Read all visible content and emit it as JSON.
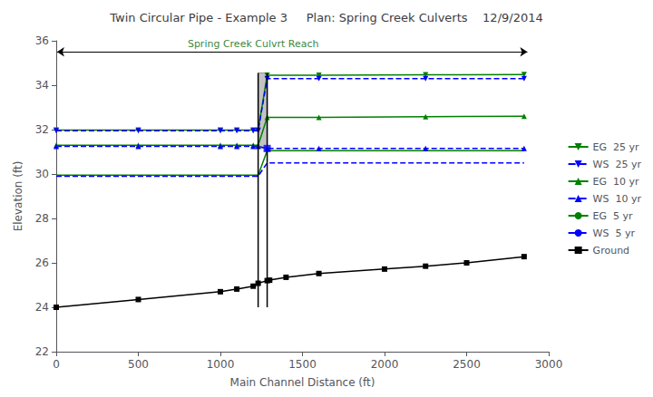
{
  "chart_data": {
    "type": "line",
    "title": "Twin Circular Pipe - Example 3     Plan: Spring Creek Culverts    12/9/2014",
    "x_label": "Main Channel Distance (ft)",
    "y_label": "Elevation (ft)",
    "xlim": [
      0,
      3000
    ],
    "xticks": [
      0,
      500,
      1000,
      1500,
      2000,
      2500,
      3000
    ],
    "ylim": [
      22,
      36
    ],
    "yticks": [
      22,
      24,
      26,
      28,
      30,
      32,
      34,
      36
    ],
    "grid": false,
    "legend": "right",
    "series": [
      {
        "name": "EG  25 yr",
        "color": "#008000",
        "line_style": "solid",
        "marker": "triangle_down",
        "x": [
          0,
          500,
          1000,
          1100,
          1200,
          1230,
          1285,
          1600,
          2250,
          2850
        ],
        "values": [
          31.98,
          31.98,
          31.98,
          31.98,
          31.98,
          31.98,
          34.45,
          34.45,
          34.47,
          34.48
        ]
      },
      {
        "name": "WS  25 yr",
        "color": "#0000ff",
        "line_style": "dashed",
        "marker": "triangle_down",
        "x": [
          0,
          500,
          1000,
          1100,
          1200,
          1230,
          1285,
          1600,
          2250,
          2850
        ],
        "values": [
          31.95,
          31.95,
          31.95,
          31.95,
          31.95,
          31.95,
          34.3,
          34.3,
          34.3,
          34.3
        ]
      },
      {
        "name": "EG  10 yr",
        "color": "#008000",
        "line_style": "solid",
        "marker": "triangle_up",
        "x": [
          0,
          500,
          1000,
          1100,
          1200,
          1230,
          1285,
          1600,
          2250,
          2850
        ],
        "values": [
          31.3,
          31.3,
          31.3,
          31.3,
          31.3,
          31.3,
          32.55,
          32.55,
          32.58,
          32.6
        ]
      },
      {
        "name": "WS  10 yr",
        "color": "#0000ff",
        "line_style": "dashed",
        "marker": "triangle_up",
        "x": [
          0,
          500,
          1000,
          1100,
          1200,
          1230,
          1285,
          1600,
          2250,
          2850
        ],
        "values": [
          31.25,
          31.25,
          31.25,
          31.25,
          31.25,
          31.25,
          31.15,
          31.15,
          31.15,
          31.15
        ]
      },
      {
        "name": "EG  5 yr",
        "color": "#008000",
        "line_style": "solid",
        "x": [
          0,
          500,
          1000,
          1100,
          1200,
          1230,
          1285,
          1600,
          2250,
          2850
        ],
        "values": [
          29.95,
          29.95,
          29.95,
          29.95,
          29.95,
          29.95,
          31.05,
          31.05,
          31.05,
          31.05
        ]
      },
      {
        "name": "WS  5 yr",
        "color": "#0000ff",
        "line_style": "dashed",
        "x": [
          0,
          500,
          1000,
          1100,
          1200,
          1230,
          1285,
          1600,
          2250,
          2850
        ],
        "values": [
          29.9,
          29.9,
          29.9,
          29.9,
          29.9,
          29.9,
          30.5,
          30.5,
          30.5,
          30.5
        ]
      },
      {
        "name": "Ground",
        "color": "#000000",
        "line_style": "solid",
        "marker": "square",
        "x": [
          0,
          500,
          1000,
          1100,
          1200,
          1230,
          1285,
          1300,
          1400,
          1600,
          2000,
          2250,
          2500,
          2850
        ],
        "values": [
          24.0,
          24.35,
          24.7,
          24.82,
          24.95,
          25.08,
          25.2,
          25.22,
          25.35,
          25.52,
          25.72,
          25.85,
          26.0,
          26.28
        ]
      }
    ],
    "culvert": {
      "x": [
        1230,
        1285
      ],
      "y": [
        24.0,
        34.55
      ],
      "barrel": [
        31.15,
        34.55
      ],
      "color": "#b8b8b8"
    },
    "outlet": {
      "x": 1285,
      "y": 31.15,
      "color": "#0000ff",
      "marker": "square"
    },
    "annotations": [
      {
        "text": "Spring Creek Culvrt Reach",
        "x": 1200,
        "y": 35.5,
        "arrow": [
          5,
          2870
        ]
      }
    ]
  }
}
